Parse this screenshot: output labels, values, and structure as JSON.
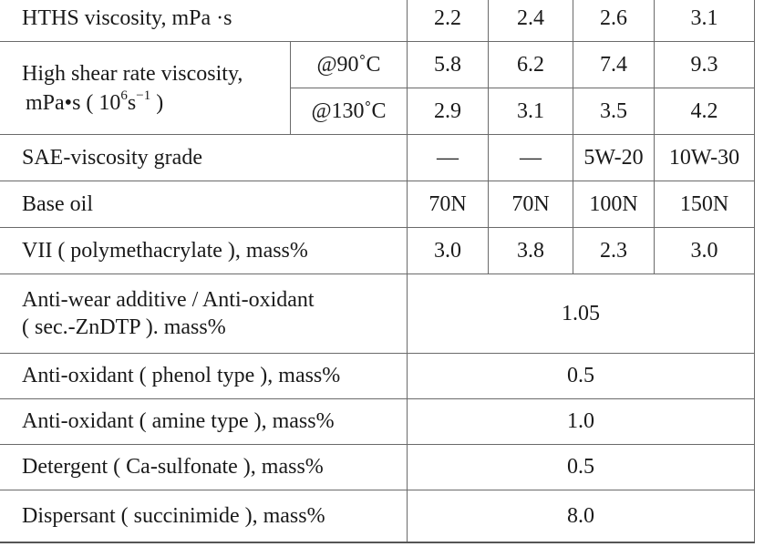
{
  "table": {
    "hths": {
      "label": "HTHS viscosity, mPa ·s",
      "values": [
        "2.2",
        "2.4",
        "2.6",
        "3.1"
      ]
    },
    "high_shear": {
      "label_line1": "High shear rate viscosity,",
      "label_line2_pre": "mPa",
      "label_line2_mid": "s ( 10",
      "label_sup1": "6",
      "label_line2_s": "s",
      "label_sup2": "−1",
      "label_line2_post": " )",
      "rows": [
        {
          "condition": "@90˚C",
          "values": [
            "5.8",
            "6.2",
            "7.4",
            "9.3"
          ]
        },
        {
          "condition": "@130˚C",
          "values": [
            "2.9",
            "3.1",
            "3.5",
            "4.2"
          ]
        }
      ]
    },
    "sae": {
      "label": "SAE-viscosity grade",
      "values": [
        "—",
        "—",
        "5W-20",
        "10W-30"
      ]
    },
    "base_oil": {
      "label": "Base oil",
      "values": [
        "70N",
        "70N",
        "100N",
        "150N"
      ]
    },
    "vii": {
      "label": "VII ( polymethacrylate ), mass%",
      "values": [
        "3.0",
        "3.8",
        "2.3",
        "3.0"
      ]
    },
    "antiwear": {
      "label_line1": "Anti-wear additive / Anti-oxidant",
      "label_line2": " ( sec.-ZnDTP ). mass%",
      "value": "1.05"
    },
    "phenol": {
      "label": "Anti-oxidant ( phenol type ), mass%",
      "value": "0.5"
    },
    "amine": {
      "label": "Anti-oxidant ( amine type ), mass%",
      "value": "1.0"
    },
    "detergent": {
      "label": "Detergent ( Ca-sulfonate ), mass%",
      "value": "0.5"
    },
    "dispersant": {
      "label": "Dispersant ( succinimide ), mass%",
      "value": "8.0"
    }
  }
}
